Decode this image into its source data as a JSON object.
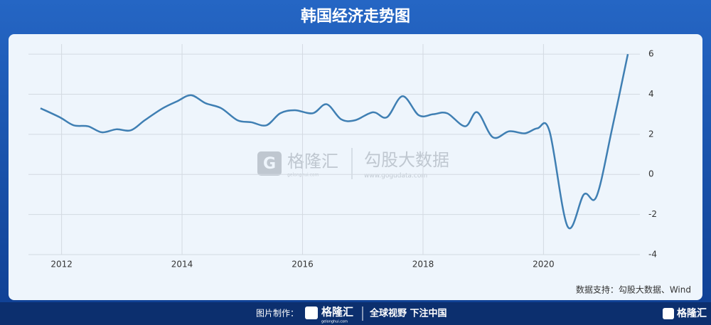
{
  "header": {
    "title": "韩国经济走势图"
  },
  "chart_data": {
    "type": "line",
    "x": [
      2011.65,
      2011.97,
      2012.2,
      2012.44,
      2012.67,
      2012.91,
      2013.15,
      2013.38,
      2013.68,
      2013.92,
      2014.15,
      2014.39,
      2014.65,
      2014.92,
      2015.15,
      2015.4,
      2015.63,
      2015.87,
      2016.17,
      2016.4,
      2016.64,
      2016.87,
      2017.17,
      2017.4,
      2017.66,
      2017.93,
      2018.17,
      2018.4,
      2018.7,
      2018.9,
      2019.16,
      2019.43,
      2019.69,
      2019.9,
      2020.1,
      2020.4,
      2020.67,
      2020.88,
      2021.14,
      2021.4
    ],
    "values": [
      3.3,
      2.85,
      2.45,
      2.4,
      2.1,
      2.25,
      2.2,
      2.7,
      3.3,
      3.65,
      3.95,
      3.55,
      3.3,
      2.7,
      2.6,
      2.45,
      3.05,
      3.2,
      3.05,
      3.5,
      2.75,
      2.7,
      3.1,
      2.85,
      3.9,
      2.95,
      3.0,
      3.05,
      2.4,
      3.1,
      1.85,
      2.15,
      2.05,
      2.3,
      2.15,
      -2.6,
      -1.0,
      -1.1,
      2.3,
      6.0
    ],
    "color": "#3f7fb3",
    "xlim": [
      2011.45,
      2021.6
    ],
    "ylim": [
      -4,
      6.5
    ],
    "xticks": [
      2012,
      2014,
      2016,
      2018,
      2020
    ],
    "yticks": [
      -4,
      -2,
      0,
      2,
      4,
      6
    ],
    "grid": true,
    "source": "数据支持：勾股大数据、Wind"
  },
  "watermark": {
    "brand": "格隆汇",
    "brand_url": "gelonghui.com",
    "partner": "勾股大数据",
    "partner_url": "www.gogudata.com"
  },
  "footer": {
    "label": "图片制作：",
    "brand": "格隆汇",
    "brand_url": "gelonghui.com",
    "slogan": "全球视野 下注中国",
    "corner_brand": "格隆汇"
  }
}
